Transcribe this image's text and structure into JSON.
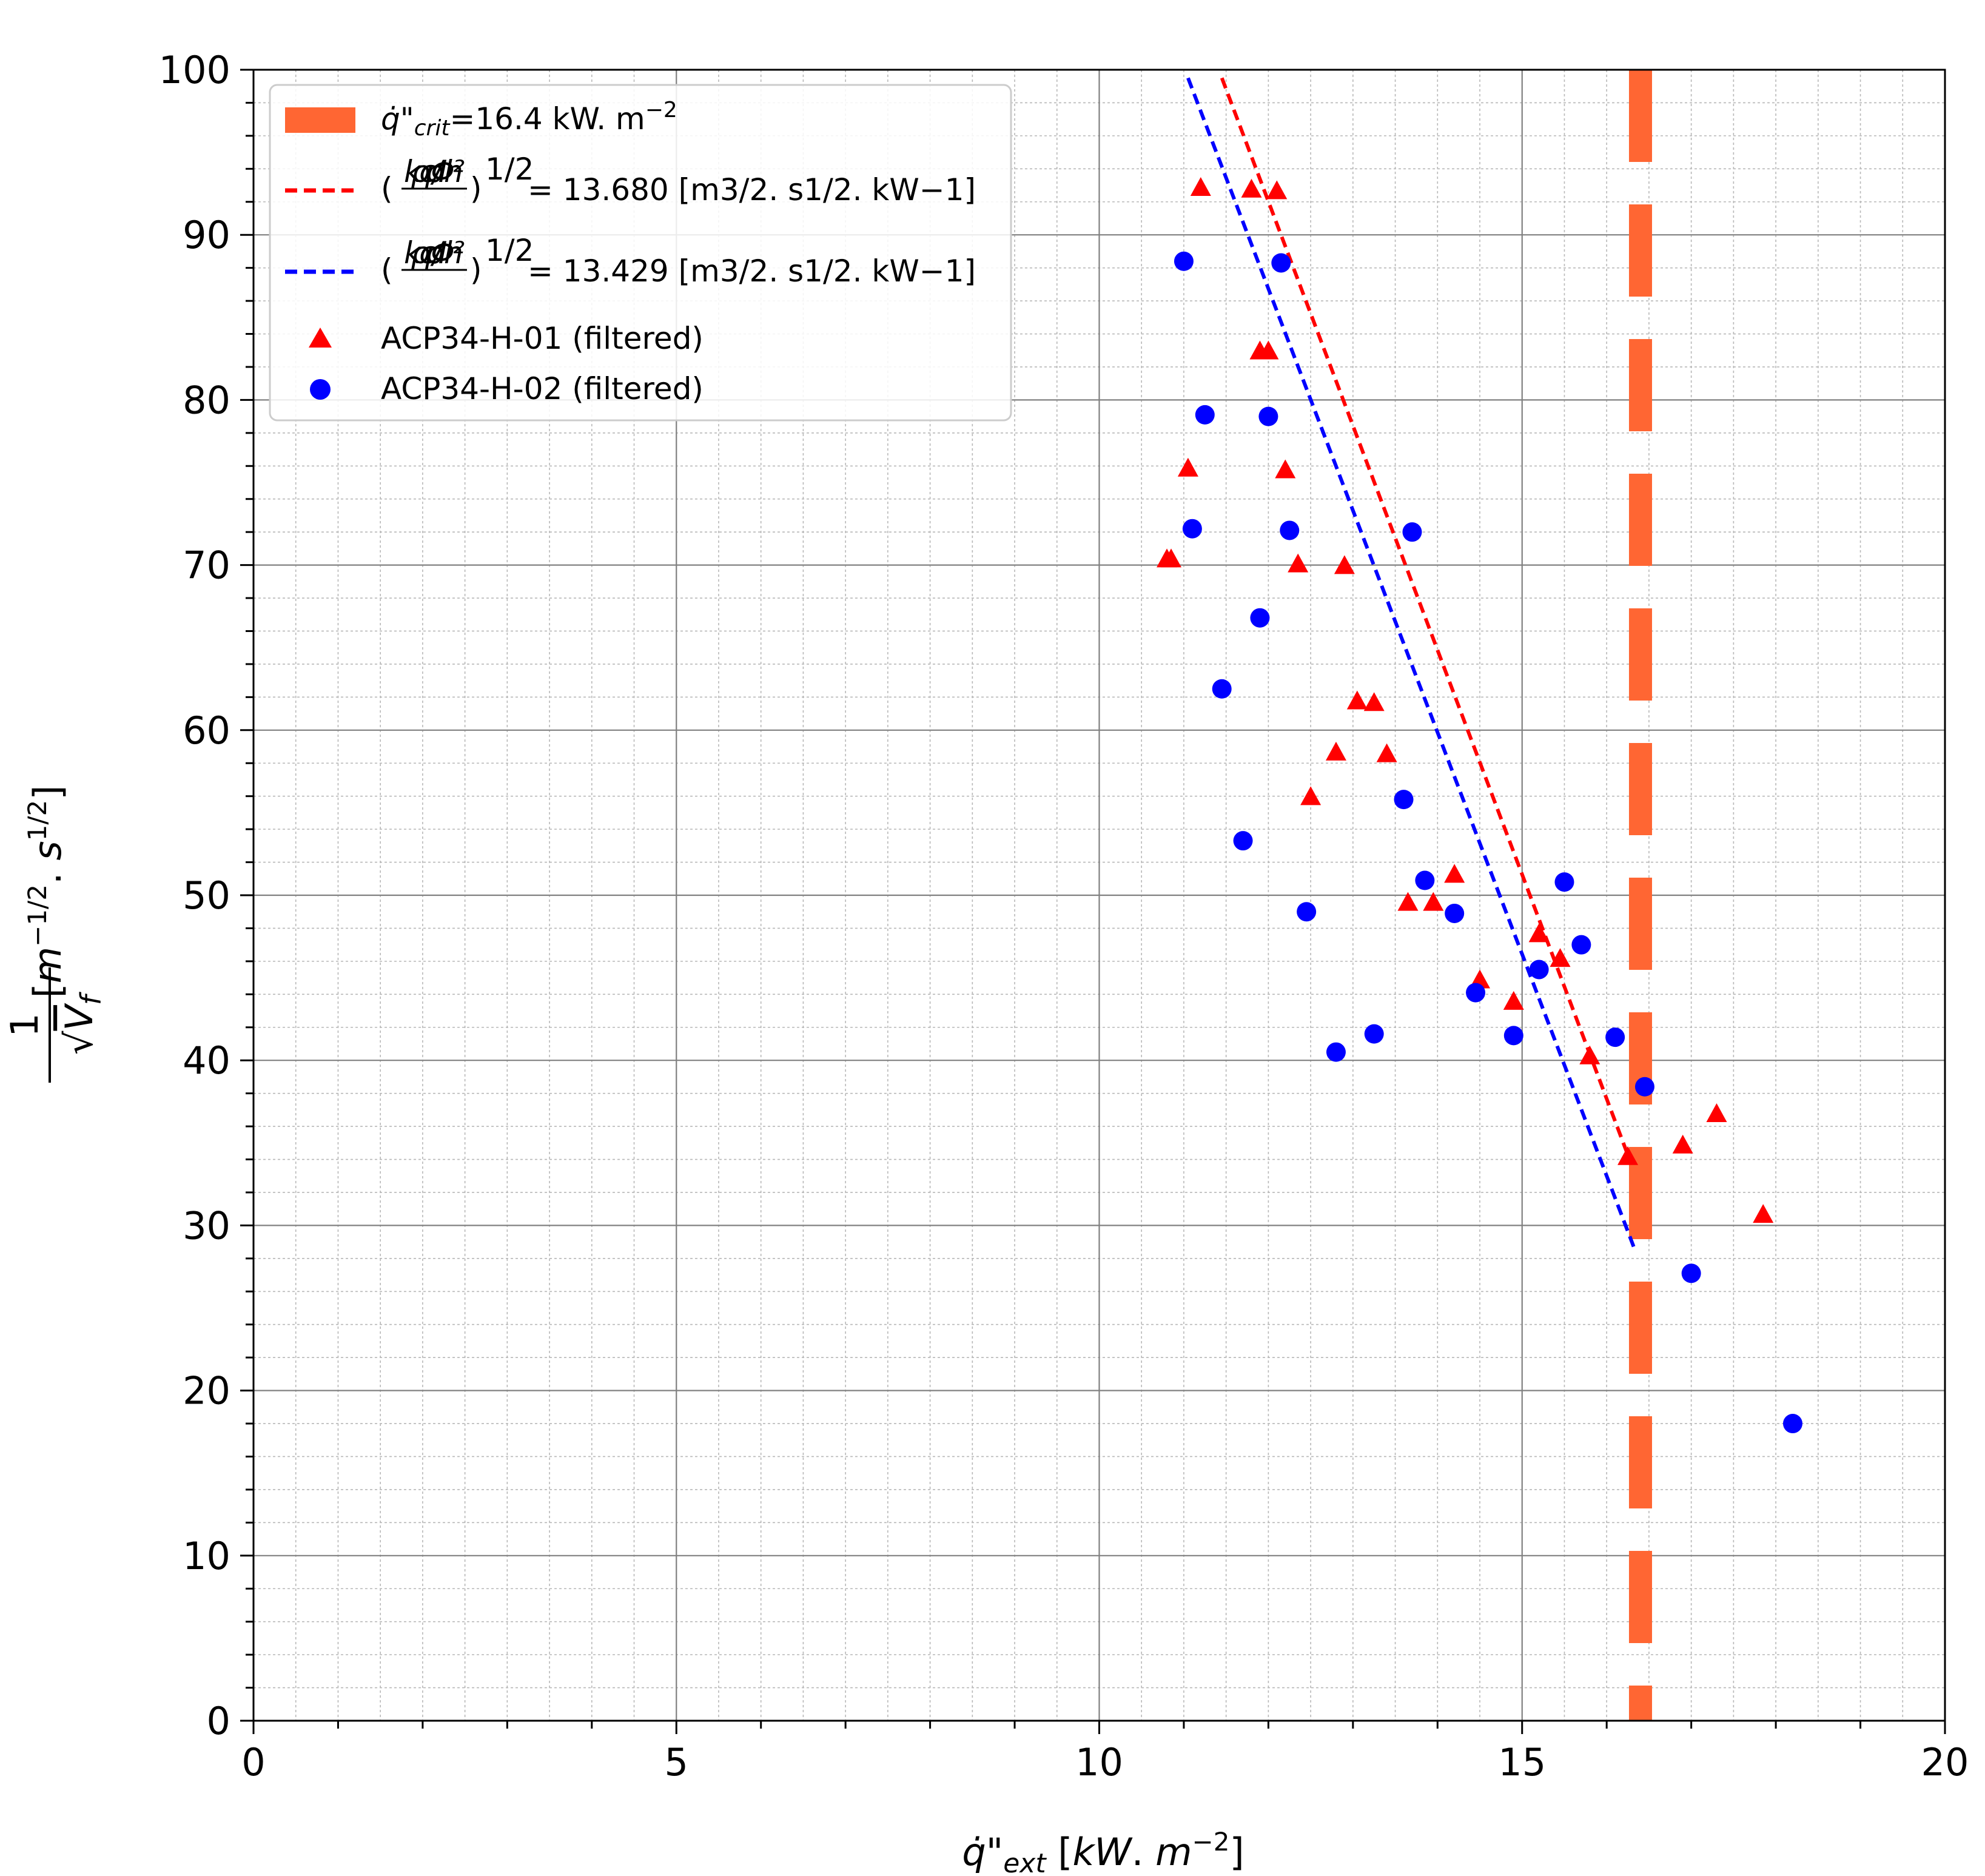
{
  "chart_data": {
    "type": "scatter",
    "xlabel": "q̇\"ext [kW. m−2]",
    "ylabel": "1/√Vf [m−1/2. s1/2]",
    "xlim": [
      0,
      20
    ],
    "ylim": [
      0,
      100
    ],
    "x_ticks": [
      "0",
      "5",
      "10",
      "15",
      "20"
    ],
    "y_ticks": [
      "0",
      "10",
      "20",
      "30",
      "40",
      "50",
      "60",
      "70",
      "80",
      "90",
      "100"
    ],
    "grid": true,
    "legend_position": "top-left",
    "series": [
      {
        "name": "ACP34-H-01 (filtered)",
        "kind": "scatter",
        "marker": "triangle",
        "color": "#ff0000",
        "points": [
          [
            10.8,
            70.3
          ],
          [
            10.85,
            70.3
          ],
          [
            11.05,
            75.8
          ],
          [
            11.2,
            92.8
          ],
          [
            11.8,
            92.7
          ],
          [
            11.9,
            82.9
          ],
          [
            12.0,
            82.9
          ],
          [
            12.1,
            92.6
          ],
          [
            12.2,
            75.7
          ],
          [
            12.35,
            70.0
          ],
          [
            12.5,
            55.9
          ],
          [
            12.8,
            58.6
          ],
          [
            12.9,
            69.9
          ],
          [
            13.05,
            61.7
          ],
          [
            13.25,
            61.6
          ],
          [
            13.4,
            58.5
          ],
          [
            13.65,
            49.5
          ],
          [
            13.95,
            49.5
          ],
          [
            14.2,
            51.2
          ],
          [
            14.5,
            44.8
          ],
          [
            14.9,
            43.5
          ],
          [
            15.2,
            47.6
          ],
          [
            15.45,
            46.1
          ],
          [
            15.8,
            40.2
          ],
          [
            16.25,
            34.1
          ],
          [
            16.9,
            34.8
          ],
          [
            17.3,
            36.7
          ],
          [
            17.85,
            30.6
          ]
        ]
      },
      {
        "name": "ACP34-H-02 (filtered)",
        "kind": "scatter",
        "marker": "circle",
        "color": "#0000ff",
        "points": [
          [
            11.0,
            88.4
          ],
          [
            11.1,
            72.2
          ],
          [
            11.25,
            79.1
          ],
          [
            11.45,
            62.5
          ],
          [
            11.7,
            53.3
          ],
          [
            11.9,
            66.8
          ],
          [
            12.0,
            79.0
          ],
          [
            12.15,
            88.3
          ],
          [
            12.25,
            72.1
          ],
          [
            12.45,
            49.0
          ],
          [
            12.8,
            40.5
          ],
          [
            13.25,
            41.6
          ],
          [
            13.6,
            55.8
          ],
          [
            13.7,
            72.0
          ],
          [
            13.85,
            50.9
          ],
          [
            14.2,
            48.9
          ],
          [
            14.45,
            44.1
          ],
          [
            14.9,
            41.5
          ],
          [
            15.2,
            45.5
          ],
          [
            15.5,
            50.8
          ],
          [
            15.7,
            47.0
          ],
          [
            16.1,
            41.4
          ],
          [
            16.45,
            38.4
          ],
          [
            17.0,
            27.1
          ],
          [
            18.2,
            18.0
          ]
        ]
      },
      {
        "name": "(kρcp/Φh²)^1/2 = 13.680 [m3/2. s1/2. kW−1]",
        "kind": "line",
        "style": "dashed",
        "color": "#ff0000",
        "points": [
          [
            11.45,
            99.5
          ],
          [
            16.27,
            34.0
          ]
        ]
      },
      {
        "name": "(kρcp/Φh²)^1/2 = 13.429 [m3/2. s1/2. kW−1]",
        "kind": "line",
        "style": "dashed",
        "color": "#0000ff",
        "points": [
          [
            11.05,
            99.5
          ],
          [
            16.32,
            28.7
          ]
        ]
      },
      {
        "name": "q̇\"crit=16.4 kW. m−2",
        "kind": "vline",
        "style": "thick-dashed",
        "color": "#ff6633",
        "x": 16.4
      }
    ],
    "legend": [
      {
        "label_pre": "q̇\"",
        "label_sub": "crit",
        "label_post": "=16.4 kW. m",
        "label_sup": "−2"
      },
      {
        "label_frac": "kρcp / Φh²",
        "label_exp": "1/2",
        "label_rest": "= 13.680 [m3/2. s1/2. kW−1]"
      },
      {
        "label_frac": "kρcp / Φh²",
        "label_exp": "1/2",
        "label_rest": "= 13.429 [m3/2. s1/2. kW−1]"
      },
      {
        "label": "ACP34-H-01 (filtered)"
      },
      {
        "label": "ACP34-H-02 (filtered)"
      }
    ]
  }
}
